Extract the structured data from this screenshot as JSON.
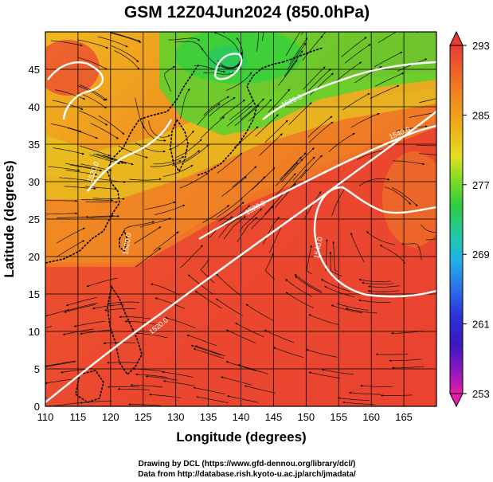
{
  "title": "GSM 12Z04Jun2024 (850.0hPa)",
  "xlabel": "Longitude (degrees)",
  "ylabel": "Latitude  (degrees)",
  "credits": {
    "line1": "Drawing by DCL (https://www.gfd-dennou.org/library/dcl/)",
    "line2": "Data from http://database.rish.kyoto-u.ac.jp/arch/jmadata/"
  },
  "colorbar": {
    "ticks": [
      "293",
      "285",
      "277",
      "269",
      "261",
      "253"
    ],
    "colors": [
      "#e8473a",
      "#f07a24",
      "#f0b418",
      "#e6e024",
      "#9ad82a",
      "#44d02e",
      "#2ad07e",
      "#22c8d4",
      "#2a92e8",
      "#2c4ee0",
      "#3020c8",
      "#4c10b4",
      "#a01ac4",
      "#e01ca8"
    ]
  },
  "chart_data": {
    "type": "map",
    "xlim": [
      110,
      170
    ],
    "ylim": [
      0,
      50
    ],
    "xticks": [
      "110",
      "115",
      "120",
      "125",
      "130",
      "135",
      "140",
      "145",
      "150",
      "155",
      "160",
      "165"
    ],
    "yticks": [
      "0",
      "5",
      "10",
      "15",
      "20",
      "25",
      "30",
      "35",
      "40",
      "45"
    ],
    "grid": true,
    "contour_labels": [
      "1520.0",
      "1520.0",
      "1520.0",
      "1540.0",
      "1520.0",
      "1540.0",
      "1520.0"
    ]
  }
}
